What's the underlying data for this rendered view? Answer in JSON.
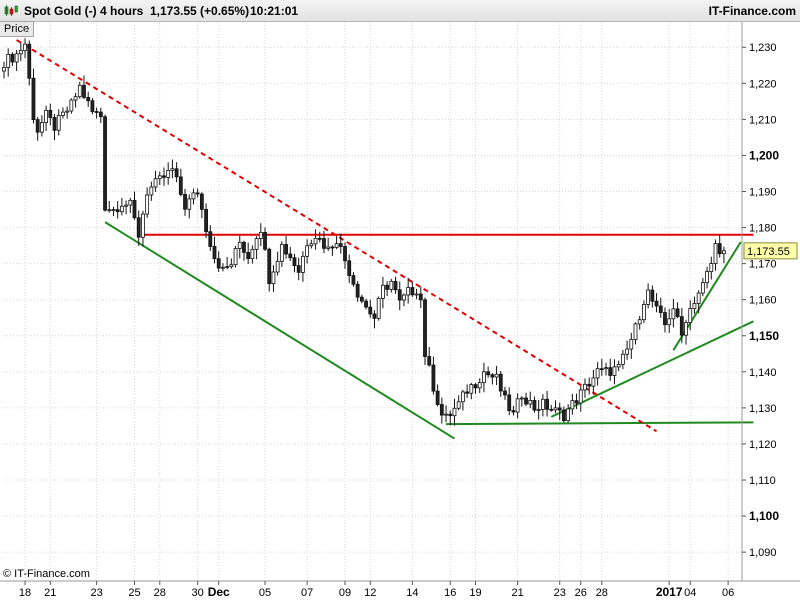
{
  "header": {
    "symbol": "Spot Gold (-)",
    "timeframe": "4 hours",
    "quote": "1,173.55 (+0.65%)",
    "time": "10:21:01",
    "brand": "IT-Finance.com"
  },
  "price_tab": "Price",
  "copyright": "© IT-Finance.com",
  "chart_data": {
    "type": "candlestick",
    "ylim": [
      1082,
      1237
    ],
    "y_ticks": [
      {
        "value": 1230,
        "label": "1,230",
        "bold": false
      },
      {
        "value": 1220,
        "label": "1,220",
        "bold": false
      },
      {
        "value": 1210,
        "label": "1,210",
        "bold": false
      },
      {
        "value": 1200,
        "label": "1,200",
        "bold": true
      },
      {
        "value": 1190,
        "label": "1,190",
        "bold": false
      },
      {
        "value": 1180,
        "label": "1,180",
        "bold": false
      },
      {
        "value": 1170,
        "label": "1,170",
        "bold": false
      },
      {
        "value": 1160,
        "label": "1,160",
        "bold": false
      },
      {
        "value": 1150,
        "label": "1,150",
        "bold": true
      },
      {
        "value": 1140,
        "label": "1,140",
        "bold": false
      },
      {
        "value": 1130,
        "label": "1,130",
        "bold": false
      },
      {
        "value": 1120,
        "label": "1,120",
        "bold": false
      },
      {
        "value": 1110,
        "label": "1,110",
        "bold": false
      },
      {
        "value": 1100,
        "label": "1,100",
        "bold": true
      },
      {
        "value": 1090,
        "label": "1,090",
        "bold": false
      }
    ],
    "x_ticks": [
      {
        "bar": 5,
        "label": "18",
        "bold": false
      },
      {
        "bar": 11,
        "label": "21",
        "bold": false
      },
      {
        "bar": 22,
        "label": "23",
        "bold": false
      },
      {
        "bar": 31,
        "label": "25",
        "bold": false
      },
      {
        "bar": 37,
        "label": "28",
        "bold": false
      },
      {
        "bar": 46,
        "label": "30",
        "bold": false
      },
      {
        "bar": 51,
        "label": "Dec",
        "bold": true
      },
      {
        "bar": 62,
        "label": "05",
        "bold": false
      },
      {
        "bar": 72,
        "label": "07",
        "bold": false
      },
      {
        "bar": 81,
        "label": "09",
        "bold": false
      },
      {
        "bar": 87,
        "label": "12",
        "bold": false
      },
      {
        "bar": 97,
        "label": "14",
        "bold": false
      },
      {
        "bar": 106,
        "label": "16",
        "bold": false
      },
      {
        "bar": 112,
        "label": "19",
        "bold": false
      },
      {
        "bar": 122,
        "label": "21",
        "bold": false
      },
      {
        "bar": 132,
        "label": "23",
        "bold": false
      },
      {
        "bar": 137,
        "label": "26",
        "bold": false
      },
      {
        "bar": 142,
        "label": "28",
        "bold": false
      },
      {
        "bar": 158,
        "label": "2017",
        "bold": true
      },
      {
        "bar": 163,
        "label": "04",
        "bold": false
      },
      {
        "bar": 172,
        "label": "06",
        "bold": false
      }
    ],
    "bars": {
      "count": 172,
      "anchors": [
        [
          0,
          1226
        ],
        [
          3,
          1228
        ],
        [
          5,
          1231
        ],
        [
          7,
          1211
        ],
        [
          8,
          1207
        ],
        [
          10,
          1211
        ],
        [
          12,
          1208
        ],
        [
          16,
          1214
        ],
        [
          18,
          1219
        ],
        [
          21,
          1212
        ],
        [
          23,
          1211
        ],
        [
          24,
          1186
        ],
        [
          26,
          1185
        ],
        [
          28,
          1187
        ],
        [
          30,
          1186
        ],
        [
          32,
          1178
        ],
        [
          34,
          1190
        ],
        [
          37,
          1193
        ],
        [
          40,
          1196
        ],
        [
          43,
          1186
        ],
        [
          46,
          1190
        ],
        [
          48,
          1180
        ],
        [
          50,
          1172
        ],
        [
          52,
          1168
        ],
        [
          54,
          1170
        ],
        [
          56,
          1176
        ],
        [
          58,
          1172
        ],
        [
          60,
          1178
        ],
        [
          61,
          1180
        ],
        [
          63,
          1166
        ],
        [
          66,
          1175
        ],
        [
          68,
          1172
        ],
        [
          70,
          1168
        ],
        [
          72,
          1176
        ],
        [
          74,
          1178
        ],
        [
          77,
          1174
        ],
        [
          79,
          1177
        ],
        [
          82,
          1168
        ],
        [
          84,
          1162
        ],
        [
          86,
          1158
        ],
        [
          88,
          1155
        ],
        [
          90,
          1163
        ],
        [
          92,
          1165
        ],
        [
          94,
          1159
        ],
        [
          96,
          1162
        ],
        [
          98,
          1163
        ],
        [
          99,
          1160
        ],
        [
          100,
          1145
        ],
        [
          102,
          1136
        ],
        [
          104,
          1128
        ],
        [
          105,
          1127
        ],
        [
          108,
          1131
        ],
        [
          110,
          1135
        ],
        [
          112,
          1137
        ],
        [
          114,
          1140
        ],
        [
          117,
          1138
        ],
        [
          119,
          1132
        ],
        [
          121,
          1128
        ],
        [
          123,
          1134
        ],
        [
          126,
          1130
        ],
        [
          128,
          1131
        ],
        [
          131,
          1129
        ],
        [
          133,
          1128
        ],
        [
          135,
          1131
        ],
        [
          137,
          1134
        ],
        [
          139,
          1137
        ],
        [
          141,
          1140
        ],
        [
          143,
          1140
        ],
        [
          146,
          1141
        ],
        [
          148,
          1146
        ],
        [
          150,
          1152
        ],
        [
          152,
          1160
        ],
        [
          153,
          1162
        ],
        [
          155,
          1157
        ],
        [
          157,
          1153
        ],
        [
          159,
          1158
        ],
        [
          161,
          1150
        ],
        [
          162,
          1155
        ],
        [
          164,
          1160
        ],
        [
          166,
          1164
        ],
        [
          168,
          1170
        ],
        [
          169,
          1175
        ],
        [
          171,
          1173.55
        ]
      ]
    },
    "lines": [
      {
        "name": "resistance-line",
        "kind": "horizontal",
        "color": "#e00000",
        "dash": false,
        "x1": 33,
        "x2": 178,
        "y1": 1178,
        "y2": 1178
      },
      {
        "name": "support-line",
        "kind": "horizontal",
        "color": "#1f8a1f",
        "dash": false,
        "x1": 105,
        "x2": 178,
        "y1": 1125.5,
        "y2": 1126
      },
      {
        "name": "descending-trendline",
        "kind": "dashed",
        "color": "#e00000",
        "dash": true,
        "x1": 3,
        "x2": 155,
        "y1": 1232,
        "y2": 1123.5
      },
      {
        "name": "lower-channel-line",
        "kind": "trend",
        "color": "#1f8a1f",
        "dash": false,
        "x1": 24,
        "x2": 107,
        "y1": 1181.5,
        "y2": 1121.5
      },
      {
        "name": "rising-trendline",
        "kind": "trend",
        "color": "#1f8a1f",
        "dash": false,
        "x1": 130,
        "x2": 178,
        "y1": 1127.5,
        "y2": 1154
      },
      {
        "name": "steep-trendline",
        "kind": "trend",
        "color": "#1f8a1f",
        "dash": false,
        "x1": 159,
        "x2": 175,
        "y1": 1146,
        "y2": 1176
      }
    ],
    "last_price": {
      "value": 1173.55,
      "label": "1,173.55"
    },
    "colors": {
      "up": "#ffffff",
      "down": "#222222",
      "wick": "#111111",
      "grid": "#d7d7d7",
      "label_bg": "#ffffaa",
      "label_border": "#8a8a3a"
    },
    "grid": true
  }
}
